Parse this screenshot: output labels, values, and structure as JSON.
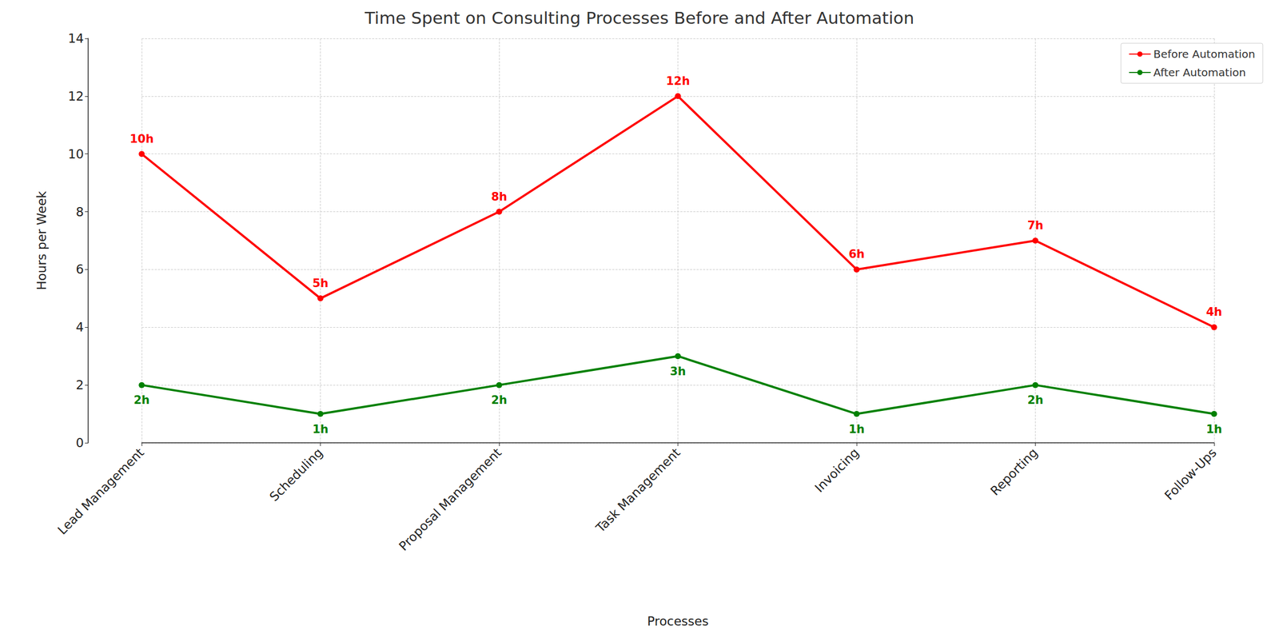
{
  "chart_data": {
    "type": "line",
    "title": "Time Spent on Consulting Processes Before and After Automation",
    "x_label": "Processes",
    "y_label": "Hours per Week",
    "categories": [
      "Lead Management",
      "Scheduling",
      "Proposal Management",
      "Task Management",
      "Invoicing",
      "Reporting",
      "Follow-Ups"
    ],
    "series": [
      {
        "name": "Before Automation",
        "color": "#ff0000",
        "marker": "circle",
        "line_style": "solid",
        "values": [
          10,
          5,
          8,
          12,
          6,
          7,
          4
        ],
        "value_labels": [
          "10h",
          "5h",
          "8h",
          "12h",
          "6h",
          "7h",
          "4h"
        ]
      },
      {
        "name": "After Automation",
        "color": "#008000",
        "marker": "circle",
        "line_style": "solid",
        "values": [
          2,
          1,
          2,
          3,
          1,
          2,
          1
        ],
        "value_labels": [
          "2h",
          "1h",
          "2h",
          "3h",
          "1h",
          "2h",
          "1h"
        ]
      }
    ],
    "ylim": [
      0,
      14
    ],
    "yticks": [
      0,
      2,
      4,
      6,
      8,
      10,
      12,
      14
    ],
    "grid": true,
    "legend": "upper right",
    "data_labels": true
  }
}
